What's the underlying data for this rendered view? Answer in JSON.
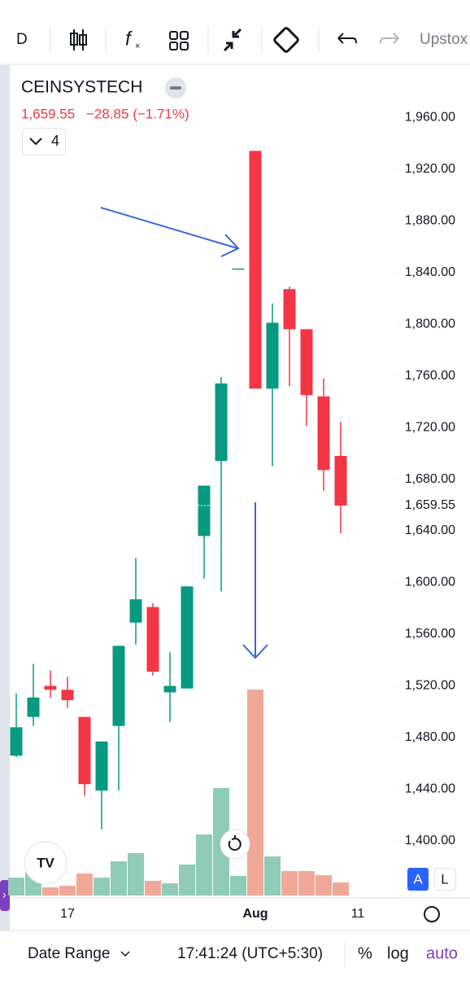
{
  "toolbar": {
    "interval": "D",
    "broker": "Upstox"
  },
  "chart_data": {
    "type": "candlestick",
    "title": "CEINSYSTECH",
    "last_price": "1,659.55",
    "change": "−28.85 (−1.71%)",
    "studies": 4,
    "categories": [
      null,
      null,
      null,
      "17",
      null,
      null,
      null,
      null,
      null,
      null,
      null,
      null,
      null,
      null,
      "Aug",
      null,
      null,
      null,
      null,
      null,
      "11"
    ],
    "open": [
      1466,
      1496,
      1520,
      1517,
      1496,
      1439,
      1489,
      1569,
      1581,
      1515,
      1518,
      1636,
      1694,
      1843,
      1934,
      1750,
      1827,
      1796,
      1744,
      1698,
      null
    ],
    "high": [
      1514,
      1537,
      1532,
      1527,
      1496,
      1477,
      1551,
      1619,
      1584,
      1546,
      1597,
      1675,
      1759,
      1843,
      1934,
      1816,
      1829,
      1796,
      1758,
      1724,
      null
    ],
    "low": [
      1465,
      1489,
      1511,
      1503,
      1435,
      1409,
      1439,
      1552,
      1528,
      1492,
      1518,
      1603,
      1593,
      1843,
      1750,
      1690,
      1752,
      1721,
      1671,
      1638,
      null
    ],
    "close": [
      1488,
      1511,
      1517,
      1509,
      1444,
      1477,
      1551,
      1587,
      1531,
      1520,
      1597,
      1675,
      1754,
      1843,
      1750,
      1801,
      1796,
      1745,
      1687,
      1659.55,
      null
    ],
    "volume": [
      22,
      28,
      10,
      12,
      27,
      22,
      42,
      52,
      18,
      15,
      38,
      75,
      132,
      24,
      253,
      48,
      30,
      30,
      25,
      16,
      null
    ],
    "up_color": "#089981",
    "down_color": "#f23645",
    "volume_up_color": "#8fcbb6",
    "volume_down_color": "#f0a899",
    "ylim": [
      1357.8,
      1997.2
    ],
    "volume_lim": [
      0,
      260
    ],
    "yticks": [
      {
        "value": 1960,
        "label": "1,960.00"
      },
      {
        "value": 1920,
        "label": "1,920.00"
      },
      {
        "value": 1880,
        "label": "1,880.00"
      },
      {
        "value": 1840,
        "label": "1,840.00"
      },
      {
        "value": 1800,
        "label": "1,800.00"
      },
      {
        "value": 1760,
        "label": "1,760.00"
      },
      {
        "value": 1720,
        "label": "1,720.00"
      },
      {
        "value": 1680,
        "label": "1,680.00"
      },
      {
        "value": 1640,
        "label": "1,640.00"
      },
      {
        "value": 1600,
        "label": "1,600.00"
      },
      {
        "value": 1560,
        "label": "1,560.00"
      },
      {
        "value": 1520,
        "label": "1,520.00"
      },
      {
        "value": 1480,
        "label": "1,480.00"
      },
      {
        "value": 1440,
        "label": "1,440.00"
      },
      {
        "value": 1400,
        "label": "1,400.00"
      }
    ],
    "price_marker": {
      "value": 1659.55,
      "label": "1,659.55"
    }
  },
  "price_scale_buttons": [
    "A",
    "L"
  ],
  "footer": {
    "date_range": "Date Range",
    "time": "17:41:24 (UTC+5:30)",
    "percent": "%",
    "log": "log",
    "auto": "auto"
  }
}
